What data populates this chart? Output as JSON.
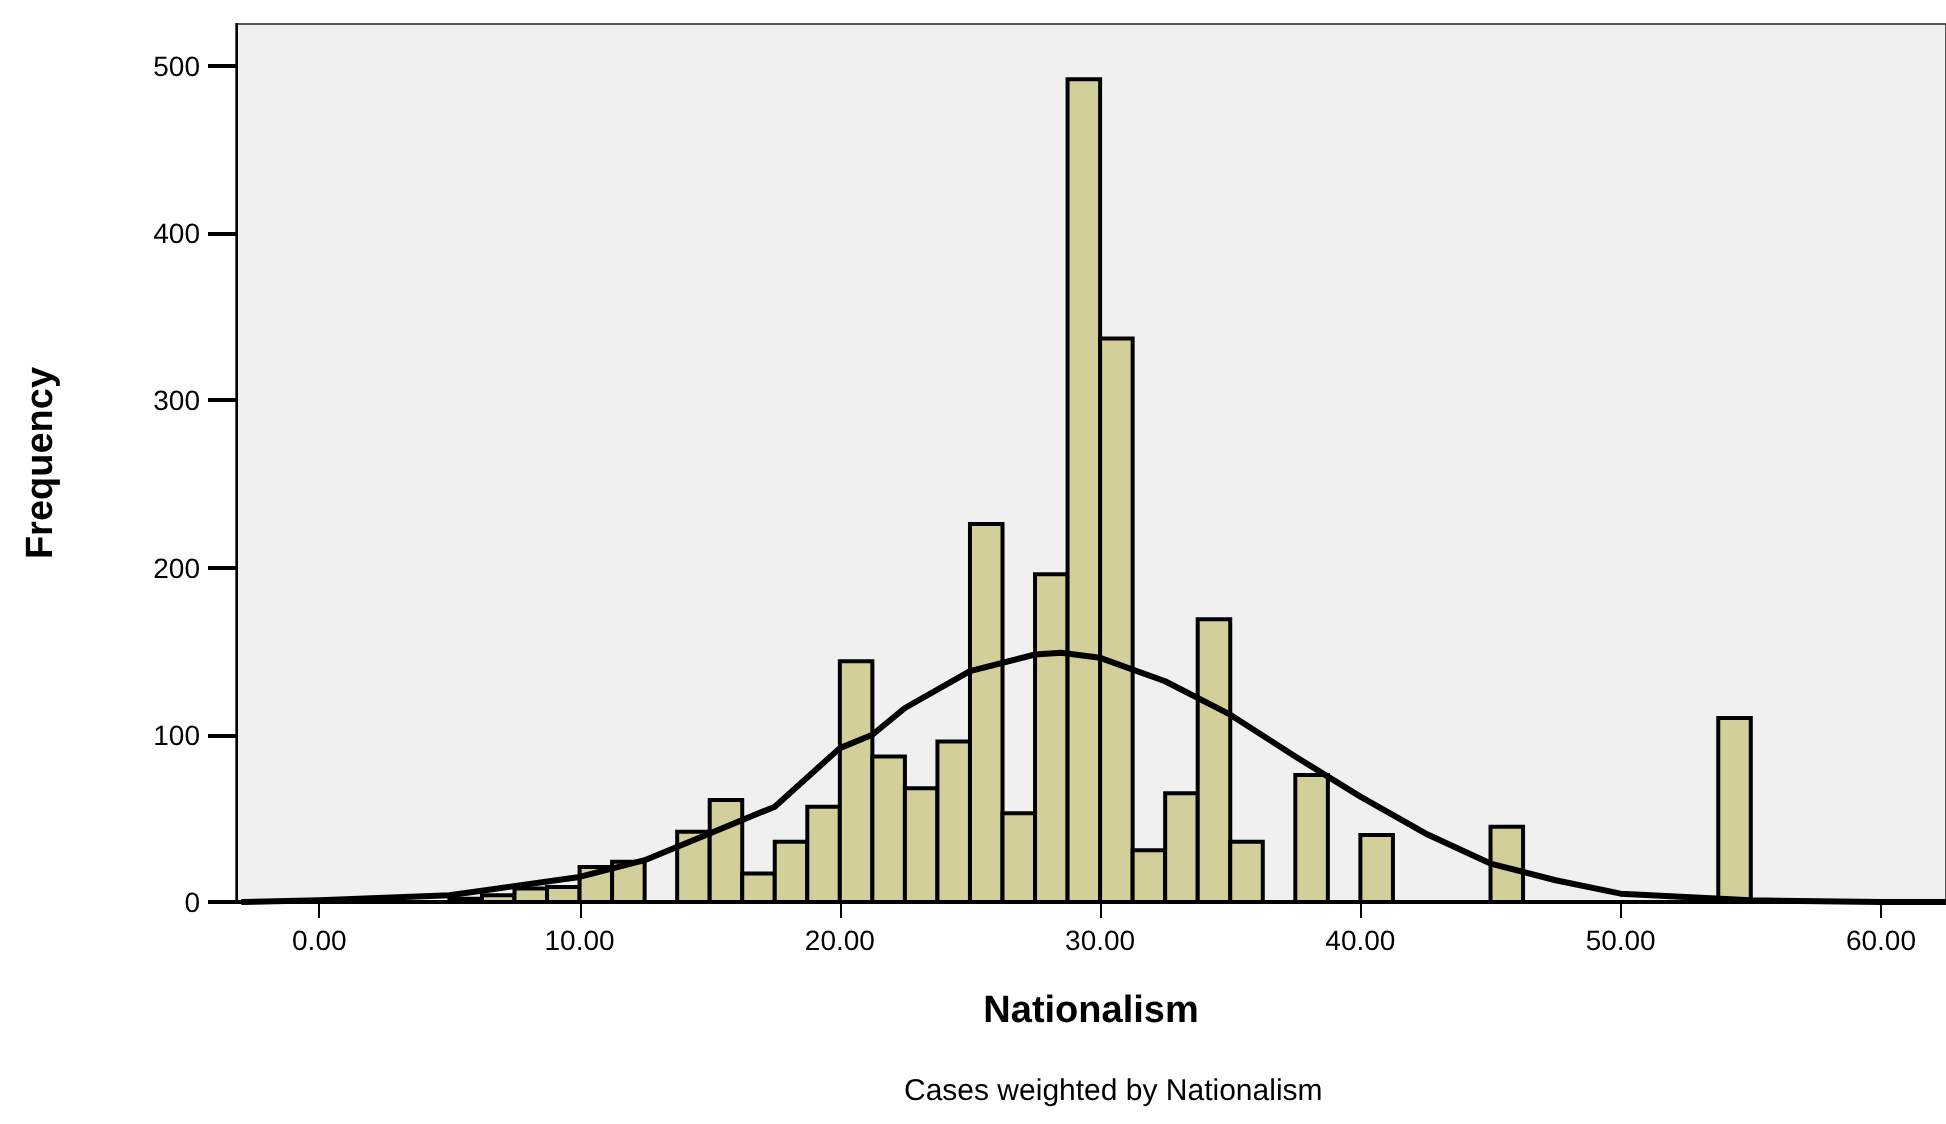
{
  "chart_data": {
    "type": "histogram",
    "xlabel": "Nationalism",
    "ylabel": "Frequency",
    "annotations": [
      "Cases weighted by Nationalism"
    ],
    "bins": [
      5,
      6.25,
      7.5,
      8.75,
      10,
      11.25,
      12.5,
      13.75,
      15,
      16.25,
      17.5,
      18.75,
      20,
      21.25,
      22.5,
      23.75,
      25,
      26.25,
      27.5,
      28.75,
      30,
      31.25,
      32.5,
      33.75,
      35,
      36.25,
      37.5,
      38.75,
      40,
      41.25,
      42.5,
      43.75,
      45,
      46.25,
      47.5,
      48.75,
      50,
      51.25,
      52.5,
      53.75,
      55
    ],
    "series": [
      {
        "color": "#d3cf9a",
        "values": [
          2,
          4,
          8,
          9,
          21,
          24,
          0,
          42,
          61,
          17,
          36,
          57,
          144,
          87,
          68,
          96,
          226,
          53,
          196,
          492,
          337,
          31,
          65,
          169,
          36,
          0,
          76,
          0,
          40,
          0,
          0,
          0,
          45,
          0,
          0,
          0,
          0,
          0,
          0,
          110
        ]
      },
      {
        "type": "line",
        "color": "#000000",
        "x": [
          -3,
          0,
          5,
          10,
          12.5,
          15,
          17.5,
          20,
          21.25,
          22.5,
          25,
          27.5,
          28.5,
          30,
          32.5,
          35,
          37.5,
          40,
          42.5,
          45,
          47.5,
          50,
          55,
          60,
          62.5
        ],
        "values": [
          0,
          1,
          4,
          15,
          25,
          41,
          57,
          92,
          100,
          116,
          138,
          148,
          149,
          146,
          132,
          112,
          87,
          63,
          41,
          23,
          13,
          5,
          1,
          0,
          0
        ]
      }
    ],
    "xlim": [
      -3.2,
      62.5
    ],
    "xticks": [
      {
        "value": 0,
        "label": "0.00"
      },
      {
        "value": 10,
        "label": "10.00"
      },
      {
        "value": 20,
        "label": "20.00"
      },
      {
        "value": 30,
        "label": "30.00"
      },
      {
        "value": 40,
        "label": "40.00"
      },
      {
        "value": 50,
        "label": "50.00"
      },
      {
        "value": 60,
        "label": "60.00"
      }
    ],
    "ylim": [
      0,
      525
    ],
    "yticks": [
      0,
      100,
      200,
      300,
      400,
      500
    ],
    "grid": false,
    "line_style": "solid",
    "marker": "none"
  }
}
